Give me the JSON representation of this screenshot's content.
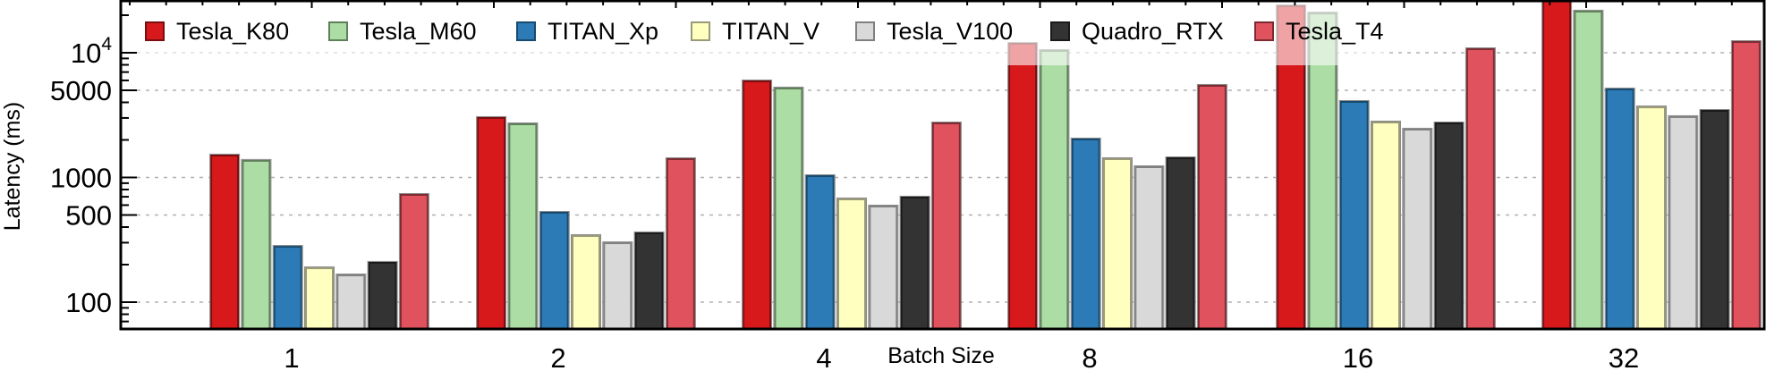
{
  "chart_data": {
    "type": "bar",
    "title": "",
    "xlabel": "Batch Size",
    "ylabel": "Latency (ms)",
    "yscale": "log",
    "ylim": [
      61,
      26000
    ],
    "grid": true,
    "legend_position": "top",
    "categories": [
      "1",
      "2",
      "4",
      "8",
      "16",
      "32"
    ],
    "yticks": [
      {
        "value": 100,
        "label": "100"
      },
      {
        "value": 500,
        "label": "500"
      },
      {
        "value": 1000,
        "label": "1000"
      },
      {
        "value": 5000,
        "label": "5000"
      },
      {
        "value": 10000,
        "label": "10",
        "superscript": "4"
      }
    ],
    "series": [
      {
        "name": "Tesla_K80",
        "color": "#d7191c",
        "edge": "#7a0d10",
        "values": [
          1500,
          3000,
          5900,
          11800,
          23600,
          40000
        ]
      },
      {
        "name": "Tesla_M60",
        "color": "#abdda4",
        "edge": "#5f7f5a",
        "values": [
          1360,
          2670,
          5170,
          10340,
          20650,
          21400
        ]
      },
      {
        "name": "TITAN_Xp",
        "color": "#2c7bb6",
        "edge": "#164a6e",
        "values": [
          278,
          521,
          1025,
          2017,
          4035,
          5080
        ]
      },
      {
        "name": "TITAN_V",
        "color": "#ffffbf",
        "edge": "#9a9a78",
        "values": [
          187,
          339,
          667,
          1403,
          2760,
          3650
        ]
      },
      {
        "name": "Tesla_V100",
        "color": "#d9d9d9",
        "edge": "#808080",
        "values": [
          164,
          297,
          585,
          1209,
          2420,
          3050
        ]
      },
      {
        "name": "Quadro_RTX",
        "color": "#333333",
        "edge": "#1a1a1a",
        "values": [
          207,
          357,
          690,
          1426,
          2715,
          3420
        ]
      },
      {
        "name": "Tesla_T4",
        "color": "#e0525e",
        "edge": "#7e2a31",
        "values": [
          725,
          1403,
          2715,
          5430,
          10680,
          12190
        ]
      }
    ]
  }
}
